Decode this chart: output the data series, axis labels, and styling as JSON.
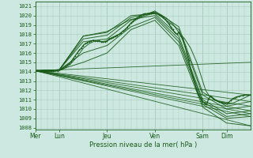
{
  "bg_color": "#cce8e0",
  "grid_color": "#aaccbb",
  "line_color": "#1a5c1a",
  "ylabel_values": [
    1008,
    1009,
    1010,
    1011,
    1012,
    1013,
    1014,
    1015,
    1016,
    1017,
    1018,
    1019,
    1020,
    1021
  ],
  "ymin": 1007.8,
  "ymax": 1021.5,
  "xlabel": "Pression niveau de la mer( hPa )",
  "day_labels": [
    "Mer",
    "Lun",
    "Jeu",
    "Ven",
    "Sam",
    "Dim"
  ],
  "day_positions": [
    0,
    24,
    72,
    120,
    168,
    192
  ],
  "xmax": 216,
  "fan_series": [
    {
      "x": [
        0,
        216
      ],
      "y": [
        1014.1,
        1011.5
      ]
    },
    {
      "x": [
        0,
        216
      ],
      "y": [
        1014.1,
        1010.8
      ]
    },
    {
      "x": [
        0,
        216
      ],
      "y": [
        1014.1,
        1010.3
      ]
    },
    {
      "x": [
        0,
        216
      ],
      "y": [
        1014.1,
        1009.8
      ]
    },
    {
      "x": [
        0,
        216
      ],
      "y": [
        1014.1,
        1009.5
      ]
    },
    {
      "x": [
        0,
        216
      ],
      "y": [
        1014.1,
        1009.2
      ]
    },
    {
      "x": [
        0,
        216
      ],
      "y": [
        1014.1,
        1008.2
      ]
    },
    {
      "x": [
        0,
        216
      ],
      "y": [
        1014.1,
        1015.0
      ]
    }
  ],
  "detailed_series": [
    [
      0,
      1014.1,
      6,
      1014.1,
      12,
      1014.05,
      18,
      1014.0,
      24,
      1014.1,
      30,
      1014.4,
      36,
      1014.9,
      42,
      1015.6,
      48,
      1016.5,
      54,
      1017.0,
      60,
      1017.3,
      66,
      1017.2,
      72,
      1017.3,
      78,
      1017.6,
      84,
      1018.0,
      90,
      1018.5,
      96,
      1019.2,
      102,
      1019.6,
      108,
      1019.9,
      114,
      1020.1,
      120,
      1020.3,
      126,
      1020.1,
      132,
      1019.7,
      138,
      1019.1,
      144,
      1018.2,
      150,
      1017.5,
      156,
      1016.5,
      162,
      1015.0,
      168,
      1013.0,
      171,
      1012.0,
      174,
      1011.5,
      177,
      1011.2,
      180,
      1011.0,
      183,
      1010.8,
      186,
      1010.7,
      189,
      1010.6,
      192,
      1010.5,
      198,
      1010.6,
      204,
      1010.9,
      210,
      1011.2,
      216,
      1011.5
    ],
    [
      0,
      1014.1,
      24,
      1014.2,
      48,
      1017.2,
      72,
      1017.5,
      96,
      1019.5,
      120,
      1020.5,
      144,
      1018.8,
      168,
      1011.8,
      192,
      1010.3,
      216,
      1010.8
    ],
    [
      0,
      1014.1,
      24,
      1014.2,
      48,
      1017.5,
      72,
      1017.9,
      96,
      1019.8,
      120,
      1020.4,
      144,
      1018.5,
      168,
      1011.5,
      192,
      1010.0,
      216,
      1010.3
    ],
    [
      0,
      1014.1,
      24,
      1014.2,
      48,
      1017.8,
      72,
      1018.2,
      96,
      1020.0,
      120,
      1020.2,
      144,
      1017.8,
      168,
      1011.0,
      192,
      1009.5,
      216,
      1009.8
    ],
    [
      0,
      1014.1,
      24,
      1014.2,
      48,
      1017.8,
      72,
      1018.3,
      96,
      1019.6,
      120,
      1020.0,
      144,
      1017.5,
      168,
      1010.8,
      192,
      1009.2,
      216,
      1009.5
    ],
    [
      0,
      1014.1,
      24,
      1014.2,
      48,
      1016.0,
      72,
      1016.8,
      96,
      1018.8,
      120,
      1019.8,
      144,
      1017.2,
      168,
      1010.5,
      192,
      1009.0,
      216,
      1009.2
    ],
    [
      0,
      1014.1,
      24,
      1014.2,
      48,
      1015.0,
      72,
      1016.0,
      96,
      1018.5,
      120,
      1019.5,
      144,
      1016.8,
      168,
      1010.2,
      192,
      1008.5,
      216,
      1008.2
    ]
  ],
  "wiggly_x": [
    0,
    2,
    4,
    6,
    8,
    10,
    12,
    14,
    16,
    18,
    20,
    22,
    24,
    26,
    28,
    30,
    32,
    34,
    36,
    38,
    40,
    42,
    44,
    46,
    48,
    50,
    52,
    54,
    56,
    58,
    60,
    62,
    64,
    66,
    68,
    70,
    72,
    74,
    76,
    78,
    80,
    82,
    84,
    86,
    88,
    90,
    92,
    94,
    96,
    98,
    100,
    102,
    104,
    106,
    108,
    110,
    112,
    114,
    116,
    118,
    120,
    122,
    124,
    126,
    128,
    130,
    132,
    134,
    136,
    138,
    140,
    142,
    144,
    146,
    148,
    150,
    152,
    154,
    156,
    158,
    160,
    162,
    164,
    166,
    168,
    170,
    172,
    174,
    176,
    178,
    180,
    182,
    184,
    186,
    188,
    190,
    192,
    194,
    196,
    198,
    200,
    202,
    204,
    206,
    208,
    210,
    212,
    214,
    216
  ],
  "wiggly_y": [
    1014.1,
    1014.15,
    1014.1,
    1014.05,
    1014.0,
    1014.0,
    1014.05,
    1014.05,
    1014.1,
    1014.1,
    1014.15,
    1014.1,
    1014.2,
    1014.3,
    1014.4,
    1014.55,
    1014.7,
    1014.85,
    1015.1,
    1015.4,
    1015.7,
    1016.0,
    1016.3,
    1016.5,
    1016.8,
    1017.0,
    1017.1,
    1017.2,
    1017.3,
    1017.35,
    1017.3,
    1017.25,
    1017.3,
    1017.2,
    1017.15,
    1017.2,
    1017.3,
    1017.5,
    1017.6,
    1017.7,
    1017.8,
    1017.9,
    1018.0,
    1018.15,
    1018.35,
    1018.5,
    1018.7,
    1018.95,
    1019.2,
    1019.4,
    1019.6,
    1019.75,
    1019.9,
    1020.0,
    1020.15,
    1020.2,
    1020.2,
    1020.2,
    1020.25,
    1020.3,
    1020.3,
    1020.2,
    1020.1,
    1020.0,
    1019.85,
    1019.6,
    1019.4,
    1019.1,
    1018.8,
    1018.5,
    1018.2,
    1018.0,
    1018.2,
    1017.8,
    1017.5,
    1016.8,
    1016.0,
    1015.2,
    1014.2,
    1013.5,
    1012.8,
    1012.0,
    1011.5,
    1011.1,
    1010.8,
    1010.6,
    1010.5,
    1011.1,
    1011.4,
    1011.2,
    1011.0,
    1010.9,
    1010.8,
    1010.75,
    1010.7,
    1010.65,
    1010.6,
    1010.7,
    1010.9,
    1011.1,
    1011.2,
    1011.3,
    1011.35,
    1011.4,
    1011.45,
    1011.5,
    1011.5,
    1011.5,
    1011.5
  ]
}
